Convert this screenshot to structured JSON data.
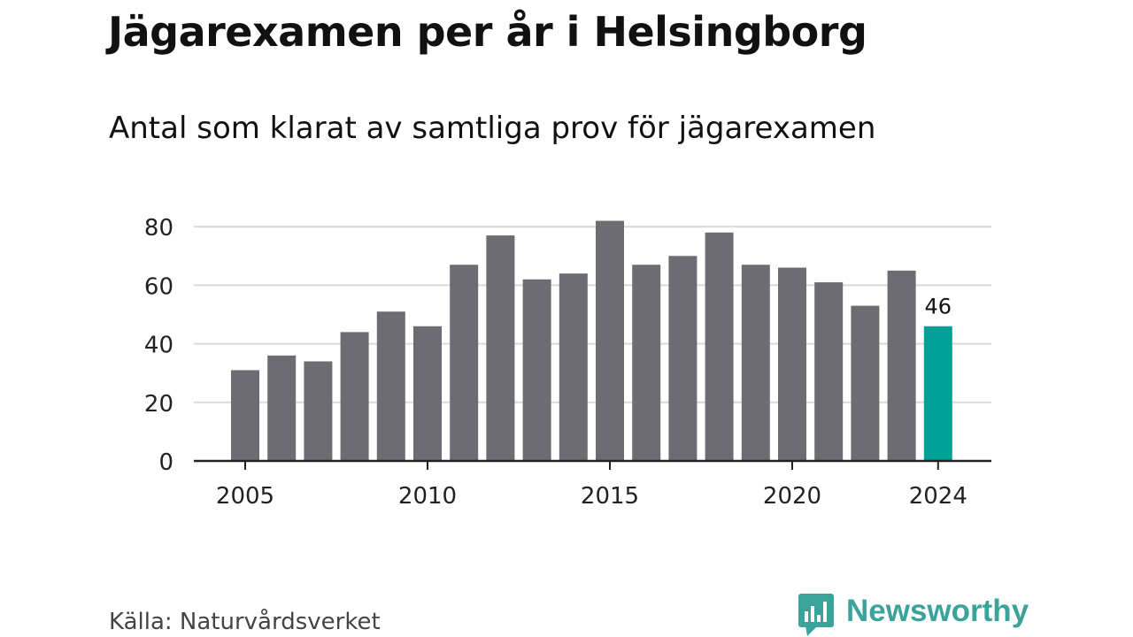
{
  "header": {
    "title": "Jägarexamen per år i Helsingborg",
    "subtitle": "Antal som klarat av samtliga prov för jägarexamen"
  },
  "footer": {
    "source": "Källa: Naturvårdsverket",
    "brand": "Newsworthy",
    "brand_icon": "bar-chart-speech-bubble-icon"
  },
  "colors": {
    "bar": "#6d6c72",
    "highlight": "#00a096",
    "grid": "#d9d9d9",
    "axis": "#222222",
    "brand": "#3aa39a"
  },
  "chart_data": {
    "type": "bar",
    "title": "Jägarexamen per år i Helsingborg",
    "subtitle": "Antal som klarat av samtliga prov för jägarexamen",
    "xlabel": "",
    "ylabel": "",
    "categories": [
      2005,
      2006,
      2007,
      2008,
      2009,
      2010,
      2011,
      2012,
      2013,
      2014,
      2015,
      2016,
      2017,
      2018,
      2019,
      2020,
      2021,
      2022,
      2023,
      2024
    ],
    "values": [
      31,
      36,
      34,
      44,
      51,
      46,
      67,
      77,
      62,
      64,
      82,
      67,
      70,
      78,
      67,
      66,
      61,
      53,
      65,
      46
    ],
    "x_tick_labels": [
      "2005",
      "2010",
      "2015",
      "2020",
      "2024"
    ],
    "y_ticks": [
      0,
      20,
      40,
      60,
      80
    ],
    "ylim": [
      0,
      82
    ],
    "highlight": {
      "category": 2024,
      "label": "46"
    },
    "grid": "horizontal"
  }
}
